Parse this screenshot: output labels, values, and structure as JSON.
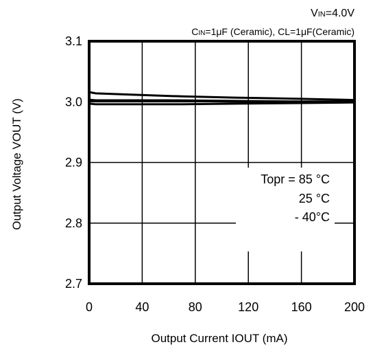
{
  "header": {
    "vin_prefix": "V",
    "vin_sub": "IN",
    "vin_value": "=4.0V",
    "cond_prefix": "C",
    "cond_sub": "IN",
    "cond_rest": "=1μF (Ceramic), CL=1μF(Ceramic)"
  },
  "legend": {
    "line1": "Topr = 85 °C",
    "line2": "25 °C",
    "line3": "- 40°C"
  },
  "chart_data": {
    "type": "line",
    "title": "",
    "xlabel": "Output Current IOUT (mA)",
    "ylabel": "Output Voltage VOUT (V)",
    "xlim": [
      0,
      200
    ],
    "ylim": [
      2.7,
      3.1
    ],
    "x_ticks": [
      0,
      40,
      80,
      120,
      160,
      200
    ],
    "x_tick_labels": [
      "0",
      "40",
      "80",
      "120",
      "160",
      "200"
    ],
    "y_ticks": [
      2.7,
      2.8,
      2.9,
      3.0,
      3.1
    ],
    "y_tick_labels": [
      "2.7",
      "2.8",
      "2.9",
      "3.0",
      "3.1"
    ],
    "grid": true,
    "series": [
      {
        "name": "85 °C",
        "x": [
          0,
          5,
          30,
          70,
          110,
          160,
          200
        ],
        "y": [
          3.016,
          3.014,
          3.012,
          3.009,
          3.007,
          3.005,
          3.003
        ]
      },
      {
        "name": "25 °C",
        "x": [
          0,
          5,
          60,
          110,
          160,
          200
        ],
        "y": [
          3.003,
          3.002,
          3.002,
          3.001,
          3.0,
          3.0
        ]
      },
      {
        "name": "- 40°C",
        "x": [
          0,
          5,
          70,
          110,
          160,
          200
        ],
        "y": [
          2.997,
          2.996,
          2.996,
          2.997,
          2.998,
          2.999
        ]
      }
    ]
  }
}
